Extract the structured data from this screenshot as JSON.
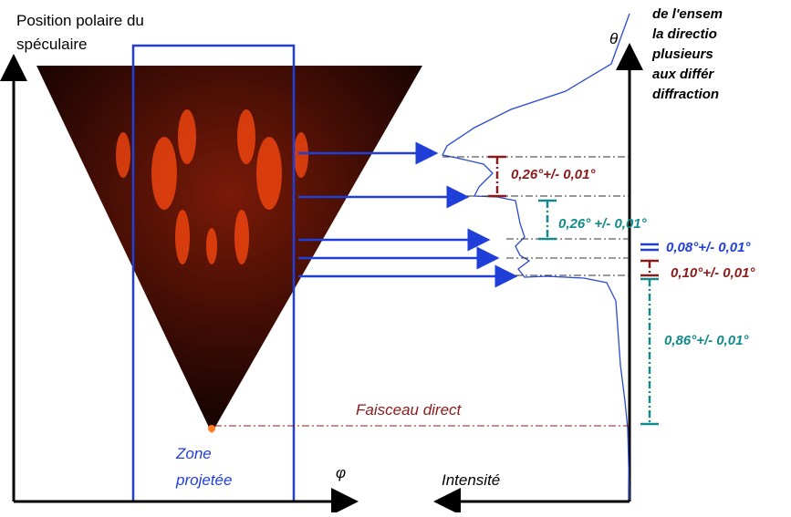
{
  "title_lines": [
    "Position polaire du",
    "spéculaire"
  ],
  "theta": "θ",
  "phi": "φ",
  "zone_lines": [
    "Zone",
    "projetée"
  ],
  "direct_beam": "Faisceau direct",
  "intensity": "Intensité",
  "caption_lines": [
    "de l'ensem",
    "la directio",
    "plusieurs",
    "aux différ",
    "diffraction"
  ],
  "measurements": [
    "0,26°+/- 0,01°",
    "0,26° +/- 0,01°",
    "0,08°+/- 0,01°",
    "0,10°+/- 0,01°",
    "0,86°+/- 0,01°"
  ]
}
